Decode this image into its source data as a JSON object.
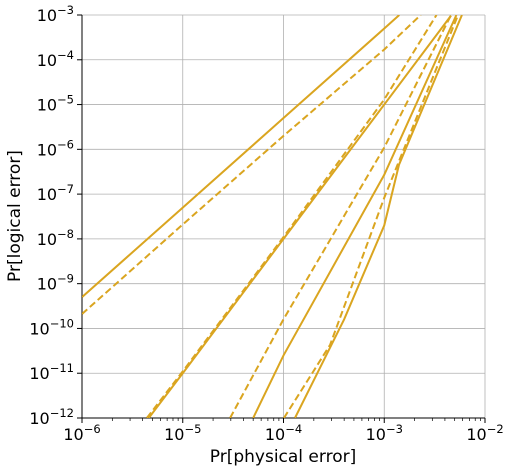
{
  "chart_data": {
    "type": "line",
    "x_label": "Pr[physical error]",
    "y_label": "Pr[logical error]",
    "log_x": true,
    "log_y": true,
    "grid": true,
    "xlim": [
      1e-06,
      0.01
    ],
    "ylim": [
      1e-12,
      0.001
    ],
    "xticks": [
      {
        "value": 1e-06,
        "label": "10−6"
      },
      {
        "value": 1e-05,
        "label": "10−5"
      },
      {
        "value": 0.0001,
        "label": "10−4"
      },
      {
        "value": 0.001,
        "label": "10−3"
      },
      {
        "value": 0.01,
        "label": "10−2"
      }
    ],
    "yticks": [
      {
        "value": 1e-12,
        "label": "10−12"
      },
      {
        "value": 1e-11,
        "label": "10−11"
      },
      {
        "value": 1e-10,
        "label": "10−10"
      },
      {
        "value": 1e-09,
        "label": "10−9"
      },
      {
        "value": 1e-08,
        "label": "10−8"
      },
      {
        "value": 1e-07,
        "label": "10−7"
      },
      {
        "value": 1e-06,
        "label": "10−6"
      },
      {
        "value": 1e-05,
        "label": "10−5"
      },
      {
        "value": 0.0001,
        "label": "10−4"
      },
      {
        "value": 0.001,
        "label": "10−3"
      }
    ],
    "series": [
      {
        "color": "#daa520",
        "dash": false,
        "x": [
          1e-06,
          1e-05,
          0.0001,
          0.001,
          0.00141
        ],
        "values": [
          5e-10,
          5e-08,
          5e-06,
          0.0005,
          0.001
        ]
      },
      {
        "color": "#daa520",
        "dash": true,
        "x": [
          1e-06,
          1e-05,
          0.0001,
          0.001,
          0.0023
        ],
        "values": [
          2.1e-10,
          2.1e-08,
          2e-06,
          0.00017,
          0.001
        ]
      },
      {
        "color": "#daa520",
        "dash": false,
        "x": [
          4.6e-06,
          1e-05,
          0.0001,
          0.001,
          0.0046
        ],
        "values": [
          1e-12,
          1e-11,
          1e-08,
          1e-05,
          0.00097
        ]
      },
      {
        "color": "#daa520",
        "dash": true,
        "x": [
          4.4e-06,
          1e-05,
          0.0001,
          0.001,
          0.0033
        ],
        "values": [
          1e-12,
          1.1e-11,
          1.1e-08,
          1.3e-05,
          0.001
        ]
      },
      {
        "color": "#daa520",
        "dash": true,
        "x": [
          2.95e-05,
          0.0001,
          0.001,
          0.0046
        ],
        "values": [
          1e-12,
          1.6e-10,
          1.1e-06,
          0.001
        ]
      },
      {
        "color": "#daa520",
        "dash": false,
        "x": [
          5e-05,
          0.0001,
          0.001,
          0.0052
        ],
        "values": [
          1e-12,
          2.5e-11,
          2.7e-07,
          0.001
        ]
      },
      {
        "color": "#daa520",
        "dash": false,
        "x": [
          0.00013,
          0.0004,
          0.001,
          0.0014,
          0.0059
        ],
        "values": [
          1e-12,
          1.6e-10,
          2e-08,
          4.5e-07,
          0.001
        ]
      },
      {
        "color": "#daa520",
        "dash": true,
        "x": [
          0.000101,
          0.00029,
          0.001,
          0.0054
        ],
        "values": [
          1e-12,
          4.3e-11,
          8.3e-08,
          0.001
        ]
      }
    ]
  }
}
